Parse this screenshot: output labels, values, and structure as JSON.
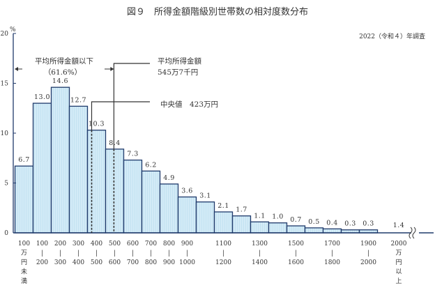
{
  "title": "図９　所得金額階級別世帯数の相対度数分布",
  "subtitle": "2022（令和４）年調査",
  "colors": {
    "bar_fill": "#d3ebf7",
    "bar_stripe": "#b9dcee",
    "bar_stroke": "#1f3a6b",
    "axis": "#1f3a6b"
  },
  "chart_data": {
    "type": "bar",
    "title": "図９　所得金額階級別世帯数の相対度数分布",
    "ylabel": "%",
    "ylim": [
      0,
      20
    ],
    "yticks": [
      "0",
      "5",
      "10",
      "15",
      "20"
    ],
    "grid": false,
    "categories": [
      {
        "lines": [
          "100",
          "万",
          "円",
          "未",
          "満"
        ]
      },
      {
        "lines": [
          "100",
          "|",
          "200"
        ]
      },
      {
        "lines": [
          "200",
          "|",
          "300"
        ]
      },
      {
        "lines": [
          "300",
          "|",
          "400"
        ]
      },
      {
        "lines": [
          "400",
          "|",
          "500"
        ]
      },
      {
        "lines": [
          "500",
          "|",
          "600"
        ]
      },
      {
        "lines": [
          "600",
          "|",
          "700"
        ]
      },
      {
        "lines": [
          "700",
          "|",
          "800"
        ]
      },
      {
        "lines": [
          "800",
          "|",
          "900"
        ]
      },
      {
        "lines": [
          "900",
          "|",
          "1000"
        ]
      },
      {
        "lines": []
      },
      {
        "lines": [
          "1100",
          "|",
          "1200"
        ]
      },
      {
        "lines": []
      },
      {
        "lines": [
          "1300",
          "|",
          "1400"
        ]
      },
      {
        "lines": []
      },
      {
        "lines": [
          "1500",
          "|",
          "1600"
        ]
      },
      {
        "lines": []
      },
      {
        "lines": [
          "1700",
          "|",
          "1800"
        ]
      },
      {
        "lines": []
      },
      {
        "lines": [
          "1900",
          "|",
          "2000"
        ]
      },
      {
        "lines": [
          "2000",
          "万",
          "円",
          "以",
          "上"
        ]
      }
    ],
    "values": [
      6.7,
      13.0,
      14.6,
      12.7,
      10.3,
      8.4,
      7.3,
      6.2,
      4.9,
      3.6,
      3.1,
      2.1,
      1.7,
      1.1,
      1.0,
      0.7,
      0.5,
      0.4,
      0.3,
      0.3,
      1.4
    ],
    "data_labels": [
      "6.7",
      "13.0",
      "14.6",
      "12.7",
      "10.3",
      "8.4",
      "7.3",
      "6.2",
      "4.9",
      "3.6",
      "3.1",
      "2.1",
      "1.7",
      "1.1",
      "1.0",
      "0.7",
      "0.5",
      "0.4",
      "0.3",
      "0.3",
      "1.4"
    ],
    "annotations": {
      "below_mean_label": "平均所得金額以下",
      "below_mean_pct": "（61.6%）",
      "mean_label": "平均所得金額",
      "mean_value": "545万7千円",
      "mean_income": 545.7,
      "median_label": "中央値　423万円",
      "median_income": 423
    }
  }
}
